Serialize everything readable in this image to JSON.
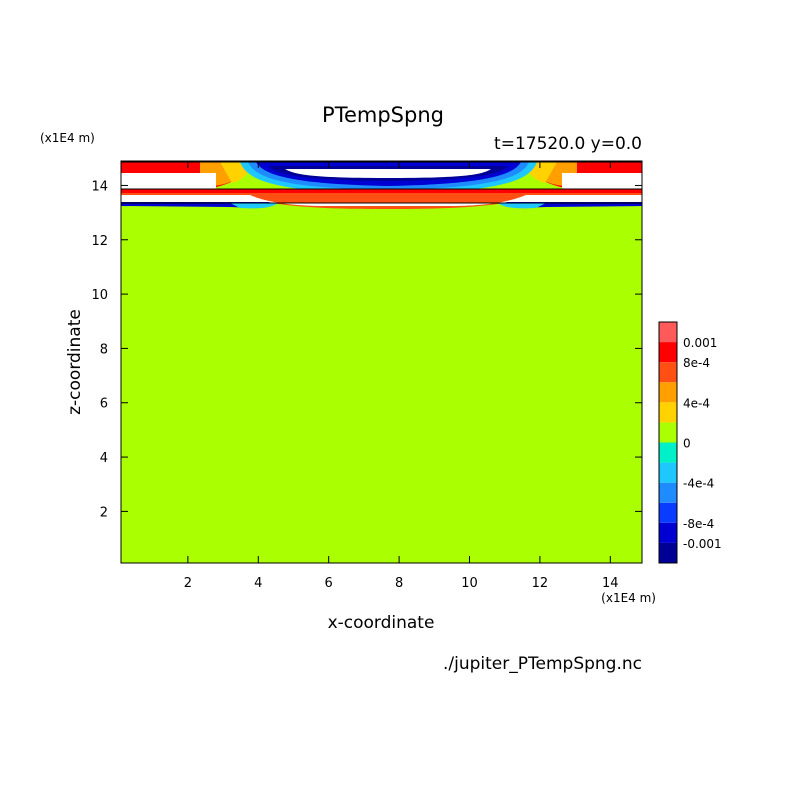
{
  "chart_data": {
    "type": "heatmap",
    "title": "PTempSpng",
    "subtitle": "t=17520.0 y=0.0",
    "source": "./jupiter_PTempSpng.nc",
    "xlabel": "x-coordinate",
    "ylabel": "z-coordinate",
    "x_unit": "(x1E4 m)",
    "y_unit": "(x1E4 m)",
    "xlim": [
      0.1,
      14.9
    ],
    "ylim": [
      0.1,
      14.9
    ],
    "x_ticks": [
      2,
      4,
      6,
      8,
      10,
      12,
      14
    ],
    "y_ticks": [
      2,
      4,
      6,
      8,
      10,
      12,
      14
    ],
    "colorbar": {
      "levels": [
        -0.001,
        -0.0008,
        -0.0006,
        -0.0004,
        -0.0002,
        0,
        0.0002,
        0.0004,
        0.0006,
        0.0008,
        0.001
      ],
      "colors": [
        "#000096",
        "#0000d2",
        "#0a3cff",
        "#1e8cff",
        "#1ec8ff",
        "#00f0c8",
        "#aaff00",
        "#ffd200",
        "#ffa000",
        "#ff5014",
        "#ff0000",
        "#ff5a5a"
      ],
      "labels": [
        {
          "value": 0.001,
          "text": "0.001"
        },
        {
          "value": 0.0008,
          "text": "8e-4"
        },
        {
          "value": 0.0004,
          "text": "4e-4"
        },
        {
          "value": 0,
          "text": "0"
        },
        {
          "value": -0.0004,
          "text": "-4e-4"
        },
        {
          "value": -0.0008,
          "text": "-8e-4"
        },
        {
          "value": -0.001,
          "text": "-0.001"
        }
      ]
    },
    "background_value": 0.0001,
    "top_layer_z": [
      13.2,
      14.9
    ]
  }
}
